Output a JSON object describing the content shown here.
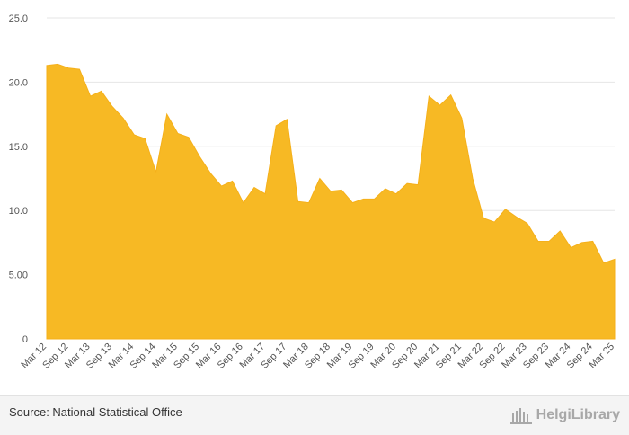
{
  "chart_data": {
    "type": "area",
    "title": "",
    "xlabel": "",
    "ylabel": "",
    "ylim": [
      0,
      25
    ],
    "grid": true,
    "y_ticks": [
      {
        "value": 0,
        "label": "0"
      },
      {
        "value": 5,
        "label": "5.00"
      },
      {
        "value": 10,
        "label": "10.0"
      },
      {
        "value": 15,
        "label": "15.0"
      },
      {
        "value": 20,
        "label": "20.0"
      },
      {
        "value": 25,
        "label": "25.0"
      }
    ],
    "x_tick_labels": [
      "Mar 12",
      "Sep 12",
      "Mar 13",
      "Sep 13",
      "Mar 14",
      "Sep 14",
      "Mar 15",
      "Sep 15",
      "Mar 16",
      "Sep 16",
      "Mar 17",
      "Sep 17",
      "Mar 18",
      "Sep 18",
      "Mar 19",
      "Sep 19",
      "Mar 20",
      "Sep 20",
      "Mar 21",
      "Sep 21",
      "Mar 22",
      "Sep 22",
      "Mar 23",
      "Sep 23",
      "Mar 24",
      "Sep 24",
      "Mar 25"
    ],
    "categories": [
      "Mar 12",
      "Jun 12",
      "Sep 12",
      "Dec 12",
      "Mar 13",
      "Jun 13",
      "Sep 13",
      "Dec 13",
      "Mar 14",
      "Jun 14",
      "Sep 14",
      "Dec 14",
      "Mar 15",
      "Jun 15",
      "Sep 15",
      "Dec 15",
      "Mar 16",
      "Jun 16",
      "Sep 16",
      "Dec 16",
      "Mar 17",
      "Jun 17",
      "Sep 17",
      "Dec 17",
      "Mar 18",
      "Jun 18",
      "Sep 18",
      "Dec 18",
      "Mar 19",
      "Jun 19",
      "Sep 19",
      "Dec 19",
      "Mar 20",
      "Jun 20",
      "Sep 20",
      "Dec 20",
      "Mar 21",
      "Jun 21",
      "Sep 21",
      "Dec 21",
      "Mar 22",
      "Jun 22",
      "Sep 22",
      "Dec 22",
      "Mar 23",
      "Jun 23",
      "Sep 23",
      "Dec 23",
      "Mar 24",
      "Jun 24",
      "Sep 24",
      "Dec 24",
      "Mar 25"
    ],
    "values": [
      21.3,
      21.4,
      21.1,
      21.0,
      18.9,
      19.3,
      18.1,
      17.2,
      15.9,
      15.6,
      13.0,
      17.5,
      16.0,
      15.7,
      14.2,
      12.9,
      11.9,
      12.3,
      10.6,
      11.8,
      11.3,
      16.6,
      17.1,
      10.7,
      10.6,
      12.5,
      11.5,
      11.6,
      10.6,
      10.9,
      10.9,
      11.7,
      11.3,
      12.1,
      12.0,
      18.9,
      18.2,
      19.0,
      17.2,
      12.5,
      9.4,
      9.1,
      10.1,
      9.5,
      9.0,
      7.6,
      7.6,
      8.4,
      7.1,
      7.5,
      7.6,
      5.9,
      6.2
    ],
    "series_color": "#f7b924"
  },
  "footer": {
    "source": "Source: National Statistical Office",
    "brand": "HelgiLibrary"
  }
}
